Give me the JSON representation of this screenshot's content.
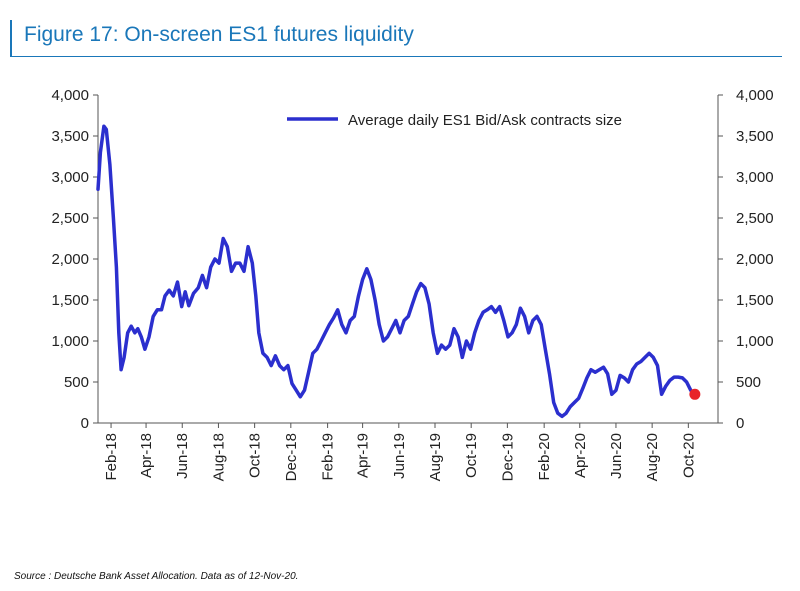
{
  "title": "Figure 17: On-screen ES1 futures liquidity",
  "source": "Source : Deutsche Bank Asset Allocation. Data as of 12-Nov-20.",
  "chart_data": {
    "type": "line",
    "title": "Figure 17: On-screen ES1 futures liquidity",
    "xlabel": "",
    "ylabel": "",
    "ylim": [
      0,
      4000
    ],
    "yticks": [
      "0",
      "500",
      "1,000",
      "1,500",
      "2,000",
      "2,500",
      "3,000",
      "3,500",
      "4,000"
    ],
    "ytick_values": [
      0,
      500,
      1000,
      1500,
      2000,
      2500,
      3000,
      3500,
      4000
    ],
    "xlim": [
      "2018-01-10",
      "2020-11-20"
    ],
    "xticks": [
      {
        "label": "Feb-18",
        "date": "2018-02-01"
      },
      {
        "label": "Apr-18",
        "date": "2018-04-01"
      },
      {
        "label": "Jun-18",
        "date": "2018-06-01"
      },
      {
        "label": "Aug-18",
        "date": "2018-08-01"
      },
      {
        "label": "Oct-18",
        "date": "2018-10-01"
      },
      {
        "label": "Dec-18",
        "date": "2018-12-01"
      },
      {
        "label": "Feb-19",
        "date": "2019-02-01"
      },
      {
        "label": "Apr-19",
        "date": "2019-04-01"
      },
      {
        "label": "Jun-19",
        "date": "2019-06-01"
      },
      {
        "label": "Aug-19",
        "date": "2019-08-01"
      },
      {
        "label": "Oct-19",
        "date": "2019-10-01"
      },
      {
        "label": "Dec-19",
        "date": "2019-12-01"
      },
      {
        "label": "Feb-20",
        "date": "2020-02-01"
      },
      {
        "label": "Apr-20",
        "date": "2020-04-01"
      },
      {
        "label": "Jun-20",
        "date": "2020-06-01"
      },
      {
        "label": "Aug-20",
        "date": "2020-08-01"
      },
      {
        "label": "Oct-20",
        "date": "2020-10-01"
      }
    ],
    "legend": "top-right",
    "grid": false,
    "dual_axis": true,
    "series": [
      {
        "name": "Average daily ES1 Bid/Ask contracts size",
        "color": "#2b2fce",
        "points": [
          [
            "2018-01-10",
            2850
          ],
          [
            "2018-01-14",
            3300
          ],
          [
            "2018-01-20",
            3620
          ],
          [
            "2018-01-24",
            3580
          ],
          [
            "2018-01-30",
            3150
          ],
          [
            "2018-02-05",
            2500
          ],
          [
            "2018-02-10",
            1900
          ],
          [
            "2018-02-14",
            1100
          ],
          [
            "2018-02-18",
            650
          ],
          [
            "2018-02-23",
            800
          ],
          [
            "2018-03-01",
            1100
          ],
          [
            "2018-03-07",
            1180
          ],
          [
            "2018-03-13",
            1100
          ],
          [
            "2018-03-18",
            1150
          ],
          [
            "2018-03-24",
            1050
          ],
          [
            "2018-03-30",
            900
          ],
          [
            "2018-04-06",
            1050
          ],
          [
            "2018-04-13",
            1300
          ],
          [
            "2018-04-20",
            1380
          ],
          [
            "2018-04-27",
            1380
          ],
          [
            "2018-05-03",
            1550
          ],
          [
            "2018-05-10",
            1620
          ],
          [
            "2018-05-17",
            1550
          ],
          [
            "2018-05-24",
            1720
          ],
          [
            "2018-05-31",
            1420
          ],
          [
            "2018-06-06",
            1600
          ],
          [
            "2018-06-12",
            1430
          ],
          [
            "2018-06-20",
            1580
          ],
          [
            "2018-06-28",
            1650
          ],
          [
            "2018-07-05",
            1800
          ],
          [
            "2018-07-12",
            1650
          ],
          [
            "2018-07-19",
            1900
          ],
          [
            "2018-07-26",
            2000
          ],
          [
            "2018-08-02",
            1950
          ],
          [
            "2018-08-09",
            2250
          ],
          [
            "2018-08-16",
            2150
          ],
          [
            "2018-08-23",
            1850
          ],
          [
            "2018-08-30",
            1950
          ],
          [
            "2018-09-06",
            1950
          ],
          [
            "2018-09-13",
            1850
          ],
          [
            "2018-09-20",
            2150
          ],
          [
            "2018-09-27",
            1950
          ],
          [
            "2018-10-03",
            1550
          ],
          [
            "2018-10-08",
            1100
          ],
          [
            "2018-10-15",
            850
          ],
          [
            "2018-10-22",
            800
          ],
          [
            "2018-10-29",
            700
          ],
          [
            "2018-11-05",
            820
          ],
          [
            "2018-11-12",
            700
          ],
          [
            "2018-11-19",
            650
          ],
          [
            "2018-11-26",
            700
          ],
          [
            "2018-12-03",
            480
          ],
          [
            "2018-12-10",
            400
          ],
          [
            "2018-12-17",
            320
          ],
          [
            "2018-12-24",
            400
          ],
          [
            "2018-12-31",
            620
          ],
          [
            "2019-01-07",
            850
          ],
          [
            "2019-01-14",
            900
          ],
          [
            "2019-01-21",
            1000
          ],
          [
            "2019-01-28",
            1100
          ],
          [
            "2019-02-04",
            1200
          ],
          [
            "2019-02-11",
            1280
          ],
          [
            "2019-02-18",
            1380
          ],
          [
            "2019-02-25",
            1200
          ],
          [
            "2019-03-04",
            1100
          ],
          [
            "2019-03-11",
            1250
          ],
          [
            "2019-03-18",
            1300
          ],
          [
            "2019-03-25",
            1550
          ],
          [
            "2019-04-01",
            1750
          ],
          [
            "2019-04-08",
            1880
          ],
          [
            "2019-04-15",
            1750
          ],
          [
            "2019-04-22",
            1500
          ],
          [
            "2019-04-29",
            1200
          ],
          [
            "2019-05-06",
            1000
          ],
          [
            "2019-05-13",
            1050
          ],
          [
            "2019-05-20",
            1150
          ],
          [
            "2019-05-27",
            1250
          ],
          [
            "2019-06-03",
            1100
          ],
          [
            "2019-06-10",
            1250
          ],
          [
            "2019-06-17",
            1300
          ],
          [
            "2019-06-24",
            1450
          ],
          [
            "2019-07-01",
            1600
          ],
          [
            "2019-07-08",
            1700
          ],
          [
            "2019-07-15",
            1650
          ],
          [
            "2019-07-22",
            1450
          ],
          [
            "2019-07-29",
            1100
          ],
          [
            "2019-08-05",
            850
          ],
          [
            "2019-08-12",
            950
          ],
          [
            "2019-08-19",
            900
          ],
          [
            "2019-08-26",
            950
          ],
          [
            "2019-09-02",
            1150
          ],
          [
            "2019-09-09",
            1050
          ],
          [
            "2019-09-16",
            800
          ],
          [
            "2019-09-23",
            1000
          ],
          [
            "2019-09-30",
            900
          ],
          [
            "2019-10-07",
            1100
          ],
          [
            "2019-10-14",
            1250
          ],
          [
            "2019-10-21",
            1350
          ],
          [
            "2019-10-28",
            1380
          ],
          [
            "2019-11-04",
            1420
          ],
          [
            "2019-11-11",
            1350
          ],
          [
            "2019-11-18",
            1420
          ],
          [
            "2019-11-25",
            1250
          ],
          [
            "2019-12-02",
            1050
          ],
          [
            "2019-12-09",
            1100
          ],
          [
            "2019-12-16",
            1200
          ],
          [
            "2019-12-23",
            1400
          ],
          [
            "2019-12-30",
            1300
          ],
          [
            "2020-01-06",
            1100
          ],
          [
            "2020-01-13",
            1250
          ],
          [
            "2020-01-20",
            1300
          ],
          [
            "2020-01-27",
            1200
          ],
          [
            "2020-02-03",
            900
          ],
          [
            "2020-02-10",
            600
          ],
          [
            "2020-02-17",
            250
          ],
          [
            "2020-02-24",
            120
          ],
          [
            "2020-03-02",
            80
          ],
          [
            "2020-03-09",
            120
          ],
          [
            "2020-03-16",
            200
          ],
          [
            "2020-03-23",
            250
          ],
          [
            "2020-03-30",
            300
          ],
          [
            "2020-04-06",
            420
          ],
          [
            "2020-04-13",
            550
          ],
          [
            "2020-04-20",
            650
          ],
          [
            "2020-04-27",
            620
          ],
          [
            "2020-05-04",
            650
          ],
          [
            "2020-05-11",
            680
          ],
          [
            "2020-05-18",
            600
          ],
          [
            "2020-05-25",
            350
          ],
          [
            "2020-06-01",
            400
          ],
          [
            "2020-06-08",
            580
          ],
          [
            "2020-06-15",
            550
          ],
          [
            "2020-06-22",
            500
          ],
          [
            "2020-06-29",
            650
          ],
          [
            "2020-07-06",
            720
          ],
          [
            "2020-07-13",
            750
          ],
          [
            "2020-07-20",
            800
          ],
          [
            "2020-07-27",
            850
          ],
          [
            "2020-08-03",
            800
          ],
          [
            "2020-08-10",
            700
          ],
          [
            "2020-08-17",
            350
          ],
          [
            "2020-08-24",
            450
          ],
          [
            "2020-08-31",
            520
          ],
          [
            "2020-09-07",
            560
          ],
          [
            "2020-09-14",
            560
          ],
          [
            "2020-09-21",
            550
          ],
          [
            "2020-09-28",
            500
          ],
          [
            "2020-10-05",
            400
          ],
          [
            "2020-10-12",
            350
          ]
        ],
        "last_point": [
          "2020-10-12",
          350
        ],
        "last_point_color": "#e8242a"
      }
    ]
  }
}
